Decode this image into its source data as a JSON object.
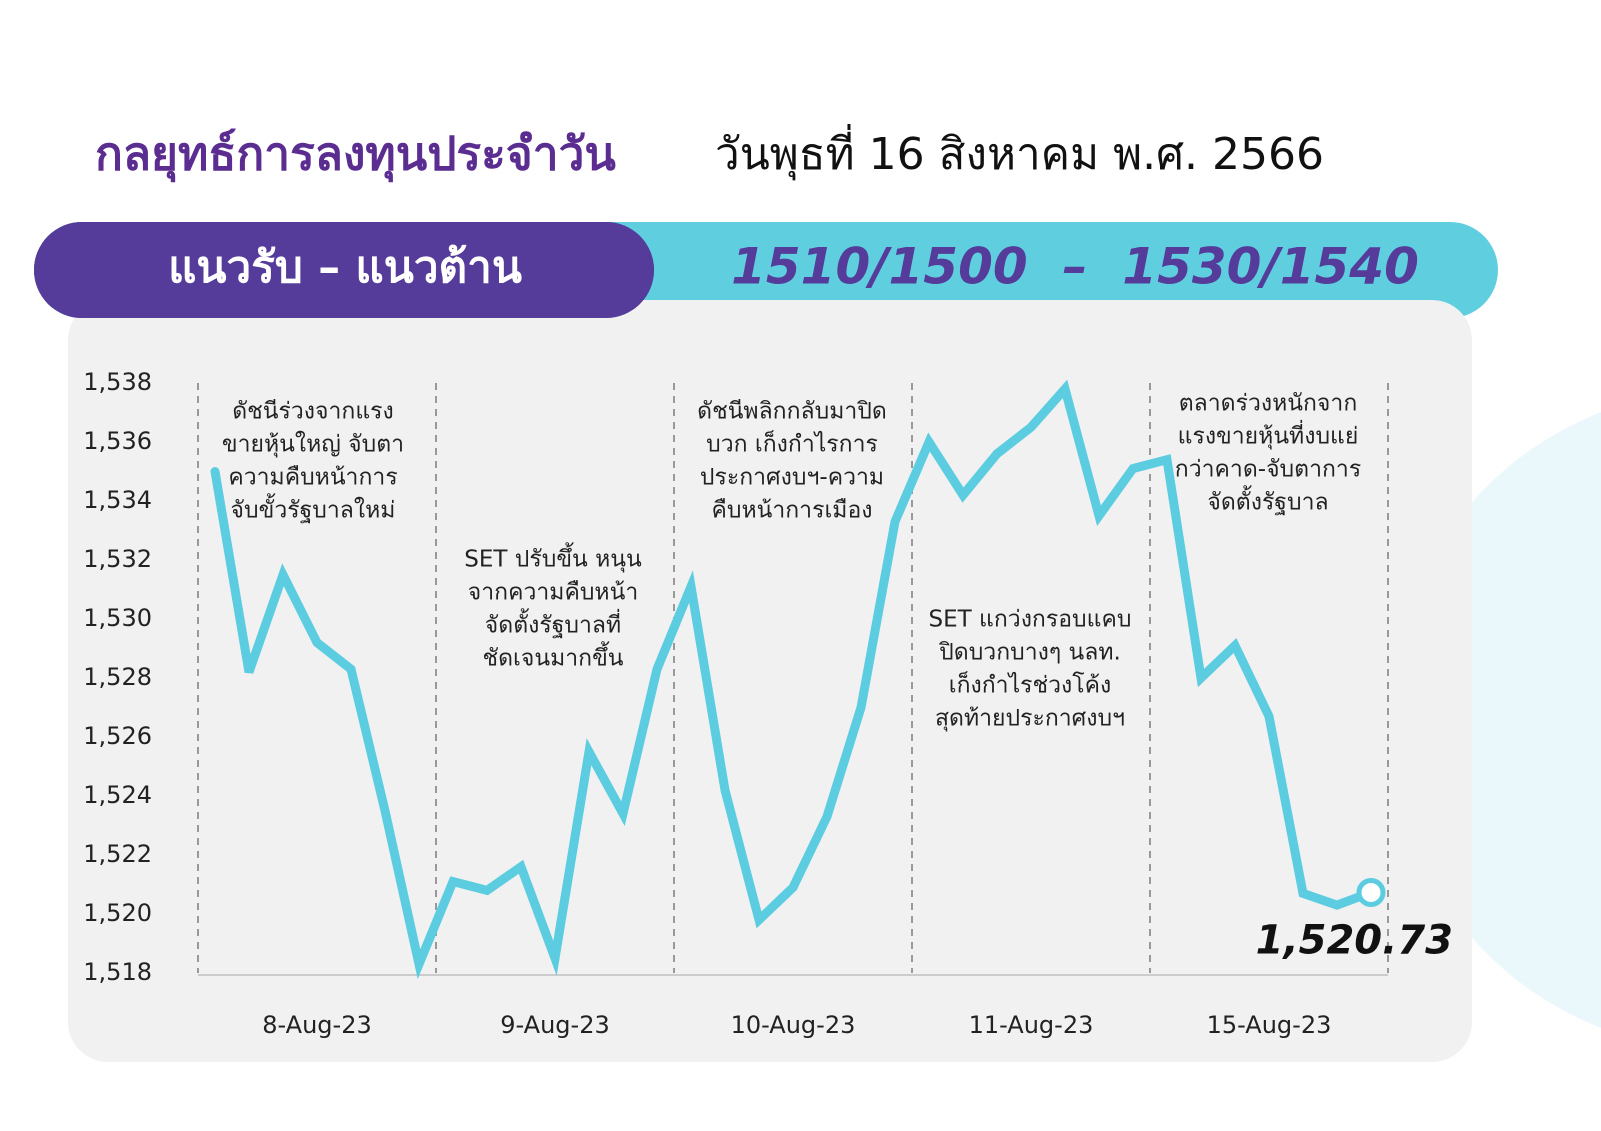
{
  "header": {
    "title": "กลยุทธ์การลงทุนประจำวัน",
    "date": "วันพุธที่ 16 สิงหาคม พ.ศ. 2566"
  },
  "banner": {
    "label": "แนวรับ – แนวต้าน",
    "range": "1510/1500  –  1530/1540"
  },
  "chart_data": {
    "type": "line",
    "categories": [
      null,
      null,
      null,
      "8-Aug-23",
      null,
      null,
      null,
      null,
      null,
      null,
      "9-Aug-23",
      null,
      null,
      null,
      null,
      null,
      null,
      "10-Aug-23",
      null,
      null,
      null,
      null,
      null,
      null,
      "11-Aug-23",
      null,
      null,
      null,
      null,
      null,
      null,
      "15-Aug-23",
      null,
      null,
      null
    ],
    "series": [
      {
        "name": "SET",
        "color": "#5ccde0",
        "values": [
          1535.0,
          1528.2,
          1531.5,
          1529.2,
          1528.3,
          1523.5,
          1518.3,
          1521.1,
          1520.8,
          1521.6,
          1518.5,
          1525.5,
          1523.4,
          1528.3,
          1531.1,
          1524.2,
          1519.8,
          1520.9,
          1523.3,
          1527.0,
          1533.3,
          1536.0,
          1534.2,
          1535.6,
          1536.5,
          1537.8,
          1533.5,
          1535.1,
          1535.4,
          1528.0,
          1529.1,
          1526.7,
          1520.7,
          1520.3,
          1520.73
        ],
        "value_labels": [
          null,
          null,
          null,
          null,
          null,
          null,
          null,
          null,
          null,
          null,
          null,
          null,
          null,
          null,
          null,
          null,
          null,
          null,
          null,
          null,
          null,
          null,
          null,
          null,
          null,
          null,
          null,
          null,
          null,
          null,
          null,
          null,
          null,
          null,
          "1,520.73"
        ]
      }
    ],
    "ylim": [
      1518,
      1538
    ],
    "yticks": [
      {
        "value": 1518,
        "label": "1,518"
      },
      {
        "value": 1520,
        "label": "1,520"
      },
      {
        "value": 1522,
        "label": "1,522"
      },
      {
        "value": 1524,
        "label": "1,524"
      },
      {
        "value": 1526,
        "label": "1,526"
      },
      {
        "value": 1528,
        "label": "1,528"
      },
      {
        "value": 1530,
        "label": "1,530"
      },
      {
        "value": 1532,
        "label": "1,532"
      },
      {
        "value": 1534,
        "label": "1,534"
      },
      {
        "value": 1536,
        "label": "1,536"
      },
      {
        "value": 1538,
        "label": "1,538"
      }
    ],
    "annotations": [
      [
        "ดัชนีร่วงจากแรง",
        "ขายหุ้นใหญ่ จับตา",
        "ความคืบหน้าการ",
        "จับขั้วรัฐบาลใหม่"
      ],
      [
        "SET ปรับขึ้น หนุน",
        "จากความคืบหน้า",
        "จัดตั้งรัฐบาลที่",
        "ชัดเจนมากขึ้น"
      ],
      [
        "ดัชนีพลิกกลับมาปิด",
        "บวก เก็งกำไรการ",
        "ประกาศงบฯ-ความ",
        "คืบหน้าการเมือง"
      ],
      [
        "SET แกว่งกรอบแคบ",
        "ปิดบวกบางๆ นลท.",
        "เก็งกำไรช่วงโค้ง",
        "สุดท้ายประกาศงบฯ"
      ],
      [
        "ตลาดร่วงหนักจาก",
        "แรงขายหุ้นที่งบแย่",
        "กว่าคาด-จับตาการ",
        "จัดตั้งรัฐบาล"
      ]
    ]
  }
}
